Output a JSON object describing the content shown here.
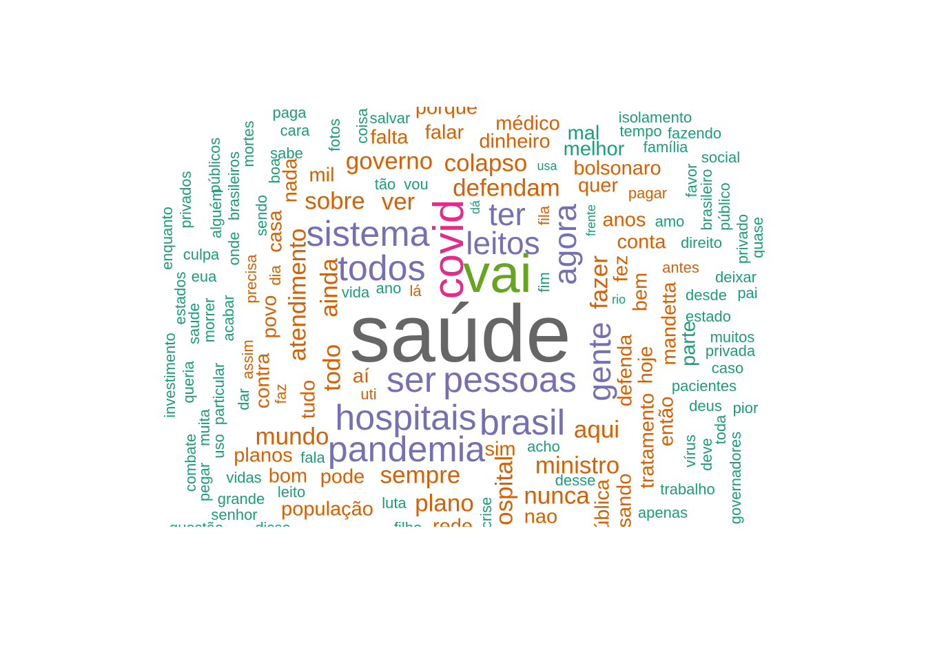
{
  "palette": {
    "gray": "#666666",
    "green": "#66a61e",
    "magenta": "#e7298a",
    "purple": "#7570b3",
    "orange": "#d95f02",
    "teal": "#1b9e77"
  },
  "words": [
    {
      "text": "saúde",
      "color": "gray",
      "level": 10
    },
    {
      "text": "vai",
      "color": "green",
      "level": 8
    },
    {
      "text": "covid",
      "color": "magenta",
      "level": 7,
      "rotate": true
    },
    {
      "text": "todos",
      "color": "purple",
      "level": 6
    },
    {
      "text": "sistema",
      "color": "purple",
      "level": 6
    },
    {
      "text": "pessoas",
      "color": "purple",
      "level": 6
    },
    {
      "text": "ser",
      "color": "purple",
      "level": 6
    },
    {
      "text": "hospitais",
      "color": "purple",
      "level": 6
    },
    {
      "text": "pandemia",
      "color": "purple",
      "level": 6
    },
    {
      "text": "brasil",
      "color": "purple",
      "level": 6
    },
    {
      "text": "leitos",
      "color": "purple",
      "level": 5
    },
    {
      "text": "ter",
      "color": "purple",
      "level": 5
    },
    {
      "text": "agora",
      "color": "purple",
      "level": 5,
      "rotate": true
    },
    {
      "text": "gente",
      "color": "purple",
      "level": 5,
      "rotate": true
    },
    {
      "text": "defendam",
      "color": "orange",
      "level": 4
    },
    {
      "text": "colapso",
      "color": "orange",
      "level": 4
    },
    {
      "text": "governo",
      "color": "orange",
      "level": 4
    },
    {
      "text": "ver",
      "color": "orange",
      "level": 4
    },
    {
      "text": "sobre",
      "color": "orange",
      "level": 4
    },
    {
      "text": "mundo",
      "color": "orange",
      "level": 4
    },
    {
      "text": "sempre",
      "color": "orange",
      "level": 4
    },
    {
      "text": "plano",
      "color": "orange",
      "level": 4
    },
    {
      "text": "ministro",
      "color": "orange",
      "level": 4
    },
    {
      "text": "nunca",
      "color": "orange",
      "level": 4
    },
    {
      "text": "aqui",
      "color": "orange",
      "level": 4
    },
    {
      "text": "fazer",
      "color": "orange",
      "level": 4,
      "rotate": true
    },
    {
      "text": "ainda",
      "color": "orange",
      "level": 4,
      "rotate": true
    },
    {
      "text": "todo",
      "color": "orange",
      "level": 4,
      "rotate": true
    },
    {
      "text": "atendimento",
      "color": "orange",
      "level": 4,
      "rotate": true
    },
    {
      "text": "hospital",
      "color": "orange",
      "level": 4,
      "rotate": true
    },
    {
      "text": "dinheiro",
      "color": "orange",
      "level": 3
    },
    {
      "text": "falta",
      "color": "orange",
      "level": 3
    },
    {
      "text": "falar",
      "color": "orange",
      "level": 3
    },
    {
      "text": "médico",
      "color": "orange",
      "level": 3
    },
    {
      "text": "bolsonaro",
      "color": "orange",
      "level": 3
    },
    {
      "text": "quer",
      "color": "orange",
      "level": 3
    },
    {
      "text": "anos",
      "color": "orange",
      "level": 3
    },
    {
      "text": "conta",
      "color": "orange",
      "level": 3
    },
    {
      "text": "mil",
      "color": "orange",
      "level": 3
    },
    {
      "text": "pode",
      "color": "orange",
      "level": 3
    },
    {
      "text": "população",
      "color": "orange",
      "level": 3
    },
    {
      "text": "sim",
      "color": "orange",
      "level": 3
    },
    {
      "text": "nao",
      "color": "orange",
      "level": 3
    },
    {
      "text": "planos",
      "color": "orange",
      "level": 3
    },
    {
      "text": "bom",
      "color": "orange",
      "level": 3
    },
    {
      "text": "aí",
      "color": "orange",
      "level": 3
    },
    {
      "text": "bem",
      "color": "orange",
      "level": 3,
      "rotate": true
    },
    {
      "text": "defenda",
      "color": "orange",
      "level": 3,
      "rotate": true
    },
    {
      "text": "hoje",
      "color": "orange",
      "level": 3,
      "rotate": true
    },
    {
      "text": "mandetta",
      "color": "orange",
      "level": 3,
      "rotate": true
    },
    {
      "text": "tratamento",
      "color": "orange",
      "level": 3,
      "rotate": true
    },
    {
      "text": "então",
      "color": "orange",
      "level": 3,
      "rotate": true
    },
    {
      "text": "tudo",
      "color": "orange",
      "level": 3,
      "rotate": true
    },
    {
      "text": "povo",
      "color": "orange",
      "level": 3,
      "rotate": true
    },
    {
      "text": "contra",
      "color": "orange",
      "level": 3,
      "rotate": true
    },
    {
      "text": "casa",
      "color": "orange",
      "level": 3,
      "rotate": true
    },
    {
      "text": "nada",
      "color": "orange",
      "level": 3,
      "rotate": true
    },
    {
      "text": "fez",
      "color": "orange",
      "level": 3,
      "rotate": true
    },
    {
      "text": "porque",
      "color": "orange",
      "level": 3
    },
    {
      "text": "rede",
      "color": "orange",
      "level": 3
    },
    {
      "text": "pagar",
      "color": "orange",
      "level": 2
    },
    {
      "text": "antes",
      "color": "orange",
      "level": 2
    },
    {
      "text": "lá",
      "color": "orange",
      "level": 2
    },
    {
      "text": "uti",
      "color": "orange",
      "level": 2
    },
    {
      "text": "dia",
      "color": "orange",
      "level": 2,
      "rotate": true
    },
    {
      "text": "assim",
      "color": "orange",
      "level": 2,
      "rotate": true
    },
    {
      "text": "precisa",
      "color": "orange",
      "level": 2,
      "rotate": true
    },
    {
      "text": "faz",
      "color": "orange",
      "level": 2,
      "rotate": true
    },
    {
      "text": "fila",
      "color": "orange",
      "level": 2,
      "rotate": true
    },
    {
      "text": "pública",
      "color": "orange",
      "level": 3,
      "rotate": true
    },
    {
      "text": "usando",
      "color": "orange",
      "level": 3,
      "rotate": true
    },
    {
      "text": "isolamento",
      "color": "teal",
      "level": 2
    },
    {
      "text": "tempo",
      "color": "teal",
      "level": 2
    },
    {
      "text": "fazendo",
      "color": "teal",
      "level": 2
    },
    {
      "text": "família",
      "color": "teal",
      "level": 2
    },
    {
      "text": "social",
      "color": "teal",
      "level": 2
    },
    {
      "text": "melhor",
      "color": "teal",
      "level": 3
    },
    {
      "text": "mal",
      "color": "teal",
      "level": 3
    },
    {
      "text": "usa",
      "color": "teal",
      "level": 1
    },
    {
      "text": "amo",
      "color": "teal",
      "level": 2
    },
    {
      "text": "direito",
      "color": "teal",
      "level": 2
    },
    {
      "text": "deixar",
      "color": "teal",
      "level": 2
    },
    {
      "text": "desde",
      "color": "teal",
      "level": 2
    },
    {
      "text": "pai",
      "color": "teal",
      "level": 2
    },
    {
      "text": "estado",
      "color": "teal",
      "level": 2
    },
    {
      "text": "muitos",
      "color": "teal",
      "level": 2
    },
    {
      "text": "privada",
      "color": "teal",
      "level": 2
    },
    {
      "text": "caso",
      "color": "teal",
      "level": 2
    },
    {
      "text": "pacientes",
      "color": "teal",
      "level": 2
    },
    {
      "text": "deus",
      "color": "teal",
      "level": 2
    },
    {
      "text": "pior",
      "color": "teal",
      "level": 2
    },
    {
      "text": "acho",
      "color": "teal",
      "level": 2
    },
    {
      "text": "desse",
      "color": "teal",
      "level": 2
    },
    {
      "text": "trabalho",
      "color": "teal",
      "level": 2
    },
    {
      "text": "apenas",
      "color": "teal",
      "level": 2
    },
    {
      "text": "rio",
      "color": "teal",
      "level": 1
    },
    {
      "text": "vida",
      "color": "teal",
      "level": 2
    },
    {
      "text": "ano",
      "color": "teal",
      "level": 2
    },
    {
      "text": "tão",
      "color": "teal",
      "level": 2
    },
    {
      "text": "vou",
      "color": "teal",
      "level": 2
    },
    {
      "text": "salvar",
      "color": "teal",
      "level": 2
    },
    {
      "text": "paga",
      "color": "teal",
      "level": 2
    },
    {
      "text": "cara",
      "color": "teal",
      "level": 2
    },
    {
      "text": "sabe",
      "color": "teal",
      "level": 2
    },
    {
      "text": "fala",
      "color": "teal",
      "level": 2
    },
    {
      "text": "vidas",
      "color": "teal",
      "level": 2
    },
    {
      "text": "leito",
      "color": "teal",
      "level": 2
    },
    {
      "text": "grande",
      "color": "teal",
      "level": 2
    },
    {
      "text": "senhor",
      "color": "teal",
      "level": 2
    },
    {
      "text": "luta",
      "color": "teal",
      "level": 2
    },
    {
      "text": "culpa",
      "color": "teal",
      "level": 2
    },
    {
      "text": "eua",
      "color": "teal",
      "level": 2
    },
    {
      "text": "questão",
      "color": "teal",
      "level": 2
    },
    {
      "text": "disse",
      "color": "teal",
      "level": 2
    },
    {
      "text": "filho",
      "color": "teal",
      "level": 2
    },
    {
      "text": "favor",
      "color": "teal",
      "level": 2,
      "rotate": true
    },
    {
      "text": "brasileiro",
      "color": "teal",
      "level": 2,
      "rotate": true
    },
    {
      "text": "público",
      "color": "teal",
      "level": 2,
      "rotate": true
    },
    {
      "text": "privado",
      "color": "teal",
      "level": 2,
      "rotate": true
    },
    {
      "text": "quase",
      "color": "teal",
      "level": 2,
      "rotate": true
    },
    {
      "text": "parte",
      "color": "teal",
      "level": 3,
      "rotate": true
    },
    {
      "text": "vírus",
      "color": "teal",
      "level": 2,
      "rotate": true
    },
    {
      "text": "deve",
      "color": "teal",
      "level": 2,
      "rotate": true
    },
    {
      "text": "toda",
      "color": "teal",
      "level": 2,
      "rotate": true
    },
    {
      "text": "governadores",
      "color": "teal",
      "level": 2,
      "rotate": true
    },
    {
      "text": "frente",
      "color": "teal",
      "level": 1,
      "rotate": true
    },
    {
      "text": "fim",
      "color": "teal",
      "level": 2,
      "rotate": true
    },
    {
      "text": "dá",
      "color": "teal",
      "level": 1,
      "rotate": true
    },
    {
      "text": "coisa",
      "color": "teal",
      "level": 2,
      "rotate": true
    },
    {
      "text": "fotos",
      "color": "teal",
      "level": 2,
      "rotate": true
    },
    {
      "text": "mortes",
      "color": "teal",
      "level": 2,
      "rotate": true
    },
    {
      "text": "boa",
      "color": "teal",
      "level": 2,
      "rotate": true
    },
    {
      "text": "brasileiros",
      "color": "teal",
      "level": 2,
      "rotate": true
    },
    {
      "text": "públicos",
      "color": "teal",
      "level": 2,
      "rotate": true
    },
    {
      "text": "alguém",
      "color": "teal",
      "level": 2,
      "rotate": true
    },
    {
      "text": "privados",
      "color": "teal",
      "level": 2,
      "rotate": true
    },
    {
      "text": "enquanto",
      "color": "teal",
      "level": 2,
      "rotate": true
    },
    {
      "text": "sendo",
      "color": "teal",
      "level": 2,
      "rotate": true
    },
    {
      "text": "onde",
      "color": "teal",
      "level": 2,
      "rotate": true
    },
    {
      "text": "estados",
      "color": "teal",
      "level": 2,
      "rotate": true
    },
    {
      "text": "saude",
      "color": "teal",
      "level": 2,
      "rotate": true
    },
    {
      "text": "morrer",
      "color": "teal",
      "level": 2,
      "rotate": true
    },
    {
      "text": "acabar",
      "color": "teal",
      "level": 2,
      "rotate": true
    },
    {
      "text": "investimento",
      "color": "teal",
      "level": 2,
      "rotate": true
    },
    {
      "text": "queria",
      "color": "teal",
      "level": 2,
      "rotate": true
    },
    {
      "text": "particular",
      "color": "teal",
      "level": 2,
      "rotate": true
    },
    {
      "text": "dar",
      "color": "teal",
      "level": 2,
      "rotate": true
    },
    {
      "text": "muita",
      "color": "teal",
      "level": 2,
      "rotate": true
    },
    {
      "text": "uso",
      "color": "teal",
      "level": 2,
      "rotate": true
    },
    {
      "text": "combate",
      "color": "teal",
      "level": 2,
      "rotate": true
    },
    {
      "text": "pegar",
      "color": "teal",
      "level": 2,
      "rotate": true
    },
    {
      "text": "crise",
      "color": "teal",
      "level": 2,
      "rotate": true
    }
  ]
}
